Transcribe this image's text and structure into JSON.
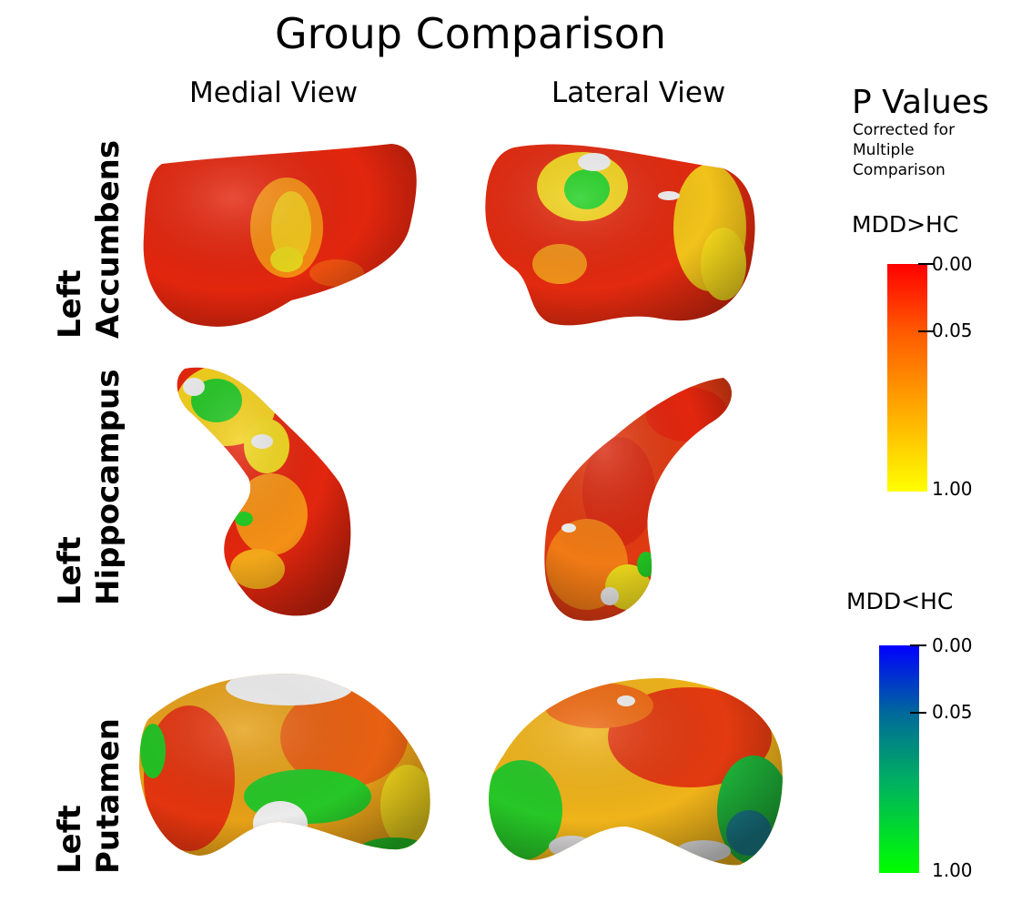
{
  "title": "Group Comparison",
  "columns": {
    "medial": "Medial View",
    "lateral": "Lateral View"
  },
  "rows": [
    {
      "line1": "Left",
      "line2": "Accumbens"
    },
    {
      "line1": "Left",
      "line2": "Hippocampus"
    },
    {
      "line1": "Left",
      "line2": "Putamen"
    }
  ],
  "legend": {
    "title": "P Values",
    "subtitle": "Corrected for Multiple Comparison",
    "scales": [
      {
        "condition": "MDD>HC",
        "ticks": [
          "0.00",
          "0.05",
          "1.00"
        ],
        "colors": [
          "#ff0000",
          "#ff8000",
          "#ffff00"
        ]
      },
      {
        "condition": "MDD<HC",
        "ticks": [
          "0.00",
          "0.05",
          "1.00"
        ],
        "colors": [
          "#0000ff",
          "#008c6e",
          "#00ff00"
        ]
      }
    ]
  }
}
